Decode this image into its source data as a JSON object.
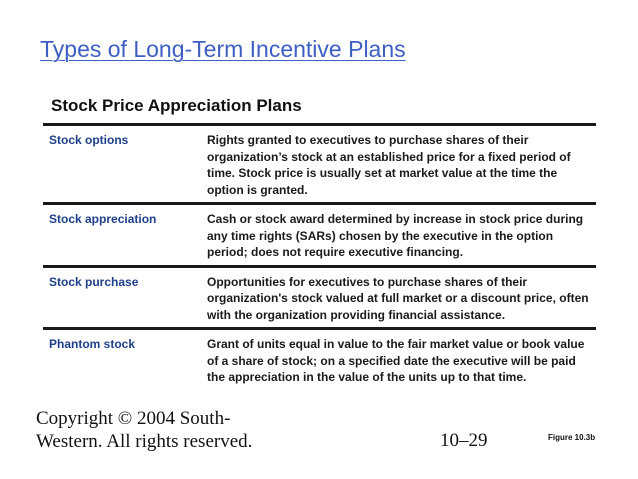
{
  "slide": {
    "title": "Types of Long-Term Incentive Plans"
  },
  "table": {
    "title": "Stock Price Appreciation Plans",
    "rows": [
      {
        "name": "Stock options",
        "description": "Rights granted to executives to purchase shares of their organization’s stock at an established price for a fixed period of time. Stock price is usually set at market value at the time the option is granted."
      },
      {
        "name": "Stock appreciation",
        "description": "Cash or stock award determined by increase in stock price during any time rights (SARs) chosen by the executive in the option period; does not require executive financing."
      },
      {
        "name": "Stock purchase",
        "description": "Opportunities for executives to purchase shares of their organization's stock valued at full market or a discount price, often with the organization providing financial assistance."
      },
      {
        "name": "Phantom stock",
        "description": "Grant of units equal in value to the fair market value or book value of a share of stock; on a specified date the executive will be paid the appreciation in the value of the units up to that time."
      }
    ]
  },
  "footer": {
    "copyright_line1": "Copyright © 2004 South-",
    "copyright_line2": "Western. All rights reserved.",
    "page_number": "10–29",
    "figure_label": "Figure 10.3b"
  }
}
